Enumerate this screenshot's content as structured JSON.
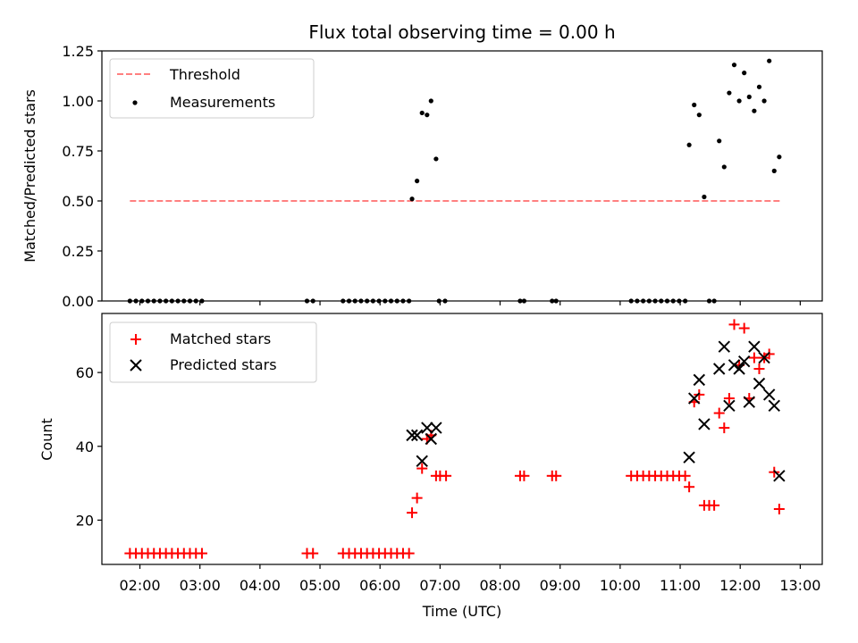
{
  "chart_data": [
    {
      "type": "scatter",
      "title": "Flux total observing time = 0.00 h",
      "ylabel": "Matched/Predicted stars",
      "xlabel": "",
      "x_unit": "hours UTC",
      "xlim": [
        "01:22",
        "13:22"
      ],
      "ylim": [
        0,
        1.25
      ],
      "yticks": [
        {
          "value": 0,
          "label": "0.00"
        },
        {
          "value": 0.25,
          "label": "0.25"
        },
        {
          "value": 0.5,
          "label": "0.50"
        },
        {
          "value": 0.75,
          "label": "0.75"
        },
        {
          "value": 1.0,
          "label": "1.00"
        },
        {
          "value": 1.25,
          "label": "1.25"
        }
      ],
      "legend": {
        "placement": "top-left"
      },
      "threshold": {
        "name": "Threshold",
        "value": 0.5,
        "x_start": "01:50",
        "x_end": "12:40",
        "color": "#ff8080"
      },
      "series": [
        {
          "name": "Measurements",
          "color": "#000000",
          "points": [
            [
              "01:50",
              0
            ],
            [
              "01:56",
              0
            ],
            [
              "02:02",
              0
            ],
            [
              "02:08",
              0
            ],
            [
              "02:14",
              0
            ],
            [
              "02:20",
              0
            ],
            [
              "02:26",
              0
            ],
            [
              "02:32",
              0
            ],
            [
              "02:38",
              0
            ],
            [
              "02:44",
              0
            ],
            [
              "02:50",
              0
            ],
            [
              "02:56",
              0
            ],
            [
              "03:02",
              0
            ],
            [
              "04:47",
              0
            ],
            [
              "04:53",
              0
            ],
            [
              "05:23",
              0
            ],
            [
              "05:29",
              0
            ],
            [
              "05:35",
              0
            ],
            [
              "05:41",
              0
            ],
            [
              "05:47",
              0
            ],
            [
              "05:53",
              0
            ],
            [
              "05:59",
              0
            ],
            [
              "06:05",
              0
            ],
            [
              "06:11",
              0
            ],
            [
              "06:17",
              0
            ],
            [
              "06:23",
              0
            ],
            [
              "06:29",
              0
            ],
            [
              "06:32",
              0.51
            ],
            [
              "06:37",
              0.6
            ],
            [
              "06:42",
              0.94
            ],
            [
              "06:47",
              0.93
            ],
            [
              "06:51",
              1.0
            ],
            [
              "06:56",
              0.71
            ],
            [
              "06:59",
              0
            ],
            [
              "07:05",
              0
            ],
            [
              "08:20",
              0
            ],
            [
              "08:24",
              0
            ],
            [
              "08:52",
              0
            ],
            [
              "08:56",
              0
            ],
            [
              "10:11",
              0
            ],
            [
              "10:17",
              0
            ],
            [
              "10:23",
              0
            ],
            [
              "10:29",
              0
            ],
            [
              "10:35",
              0
            ],
            [
              "10:41",
              0
            ],
            [
              "10:47",
              0
            ],
            [
              "10:53",
              0
            ],
            [
              "10:59",
              0
            ],
            [
              "11:05",
              0
            ],
            [
              "11:09",
              0.78
            ],
            [
              "11:14",
              0.98
            ],
            [
              "11:19",
              0.93
            ],
            [
              "11:24",
              0.52
            ],
            [
              "11:29",
              0
            ],
            [
              "11:34",
              0
            ],
            [
              "11:39",
              0.8
            ],
            [
              "11:44",
              0.67
            ],
            [
              "11:49",
              1.04
            ],
            [
              "11:54",
              1.18
            ],
            [
              "11:59",
              1.0
            ],
            [
              "12:04",
              1.14
            ],
            [
              "12:09",
              1.02
            ],
            [
              "12:14",
              0.95
            ],
            [
              "12:19",
              1.07
            ],
            [
              "12:24",
              1.0
            ],
            [
              "12:29",
              1.2
            ],
            [
              "12:34",
              0.65
            ],
            [
              "12:39",
              0.72
            ]
          ]
        }
      ]
    },
    {
      "type": "scatter",
      "title": "",
      "ylabel": "Count",
      "xlabel": "Time (UTC)",
      "x_unit": "hours UTC",
      "xlim": [
        "01:22",
        "13:22"
      ],
      "ylim": [
        8,
        76
      ],
      "xticks": [
        "02:00",
        "03:00",
        "04:00",
        "05:00",
        "06:00",
        "07:00",
        "08:00",
        "09:00",
        "10:00",
        "11:00",
        "12:00",
        "13:00"
      ],
      "yticks": [
        {
          "value": 20,
          "label": "20"
        },
        {
          "value": 40,
          "label": "40"
        },
        {
          "value": 60,
          "label": "60"
        }
      ],
      "legend": {
        "placement": "top-left"
      },
      "series": [
        {
          "name": "Matched stars",
          "marker": "plus",
          "color": "#ff0000",
          "points": [
            [
              "01:50",
              11
            ],
            [
              "01:56",
              11
            ],
            [
              "02:02",
              11
            ],
            [
              "02:08",
              11
            ],
            [
              "02:14",
              11
            ],
            [
              "02:20",
              11
            ],
            [
              "02:26",
              11
            ],
            [
              "02:32",
              11
            ],
            [
              "02:38",
              11
            ],
            [
              "02:44",
              11
            ],
            [
              "02:50",
              11
            ],
            [
              "02:56",
              11
            ],
            [
              "03:02",
              11
            ],
            [
              "04:47",
              11
            ],
            [
              "04:53",
              11
            ],
            [
              "05:23",
              11
            ],
            [
              "05:29",
              11
            ],
            [
              "05:35",
              11
            ],
            [
              "05:41",
              11
            ],
            [
              "05:47",
              11
            ],
            [
              "05:53",
              11
            ],
            [
              "05:59",
              11
            ],
            [
              "06:05",
              11
            ],
            [
              "06:11",
              11
            ],
            [
              "06:17",
              11
            ],
            [
              "06:23",
              11
            ],
            [
              "06:29",
              11
            ],
            [
              "06:32",
              22
            ],
            [
              "06:37",
              26
            ],
            [
              "06:42",
              34
            ],
            [
              "06:47",
              42
            ],
            [
              "06:51",
              43
            ],
            [
              "06:56",
              32
            ],
            [
              "07:00",
              32
            ],
            [
              "07:06",
              32
            ],
            [
              "08:20",
              32
            ],
            [
              "08:24",
              32
            ],
            [
              "08:52",
              32
            ],
            [
              "08:56",
              32
            ],
            [
              "10:11",
              32
            ],
            [
              "10:17",
              32
            ],
            [
              "10:23",
              32
            ],
            [
              "10:29",
              32
            ],
            [
              "10:35",
              32
            ],
            [
              "10:41",
              32
            ],
            [
              "10:47",
              32
            ],
            [
              "10:53",
              32
            ],
            [
              "10:59",
              32
            ],
            [
              "11:05",
              32
            ],
            [
              "11:09",
              29
            ],
            [
              "11:14",
              52
            ],
            [
              "11:19",
              54
            ],
            [
              "11:24",
              24
            ],
            [
              "11:29",
              24
            ],
            [
              "11:34",
              24
            ],
            [
              "11:39",
              49
            ],
            [
              "11:44",
              45
            ],
            [
              "11:49",
              53
            ],
            [
              "11:54",
              73
            ],
            [
              "11:59",
              62
            ],
            [
              "12:04",
              72
            ],
            [
              "12:09",
              53
            ],
            [
              "12:14",
              64
            ],
            [
              "12:19",
              61
            ],
            [
              "12:24",
              64
            ],
            [
              "12:29",
              65
            ],
            [
              "12:34",
              33
            ],
            [
              "12:39",
              23
            ]
          ]
        },
        {
          "name": "Predicted stars",
          "marker": "x",
          "color": "#000000",
          "points": [
            [
              "06:32",
              43
            ],
            [
              "06:37",
              43
            ],
            [
              "06:42",
              36
            ],
            [
              "06:47",
              45
            ],
            [
              "06:51",
              42
            ],
            [
              "06:56",
              45
            ],
            [
              "11:09",
              37
            ],
            [
              "11:14",
              53
            ],
            [
              "11:19",
              58
            ],
            [
              "11:24",
              46
            ],
            [
              "11:39",
              61
            ],
            [
              "11:44",
              67
            ],
            [
              "11:49",
              51
            ],
            [
              "11:54",
              62
            ],
            [
              "11:59",
              61
            ],
            [
              "12:04",
              63
            ],
            [
              "12:09",
              52
            ],
            [
              "12:14",
              67
            ],
            [
              "12:19",
              57
            ],
            [
              "12:24",
              64
            ],
            [
              "12:29",
              54
            ],
            [
              "12:34",
              51
            ],
            [
              "12:39",
              32
            ]
          ]
        }
      ]
    }
  ]
}
